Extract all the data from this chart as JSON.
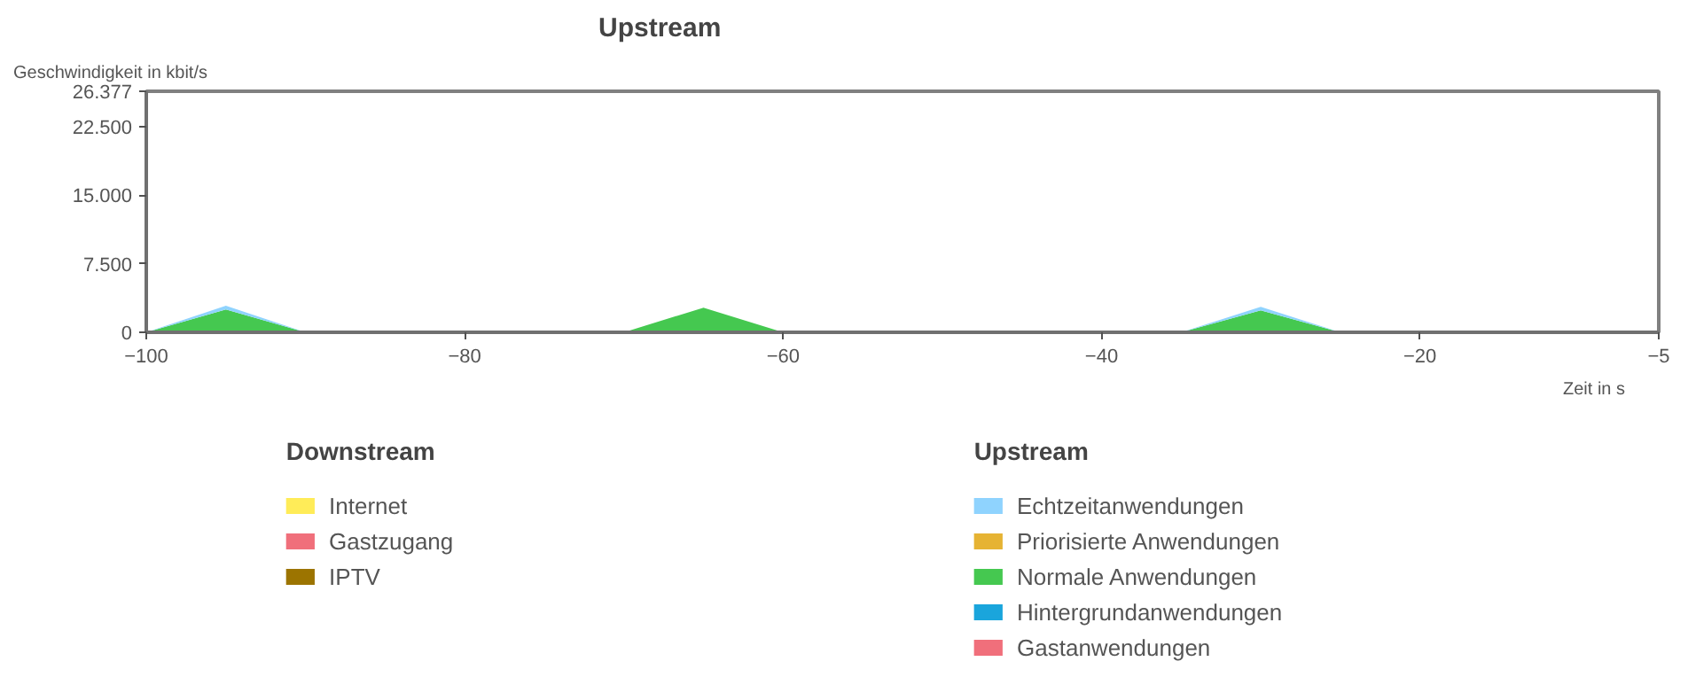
{
  "chart_data": [
    {
      "type": "area",
      "stacked": true,
      "title": "Upstream",
      "xlabel": "Zeit in s",
      "ylabel": "Geschwindigkeit in kbit/s",
      "x": [
        -100,
        -95,
        -90,
        -85,
        -80,
        -75,
        -70,
        -65,
        -60,
        -55,
        -50,
        -45,
        -40,
        -35,
        -30,
        -25,
        -20,
        -15,
        -10,
        -5
      ],
      "series": [
        {
          "name": "Gastanwendungen",
          "color": "#f06f7b",
          "values": [
            null,
            null,
            null,
            null,
            null,
            null,
            null,
            null,
            null,
            null,
            null,
            null,
            null,
            null,
            null,
            null,
            null,
            null,
            null,
            null
          ]
        },
        {
          "name": "Hintergrundanwendungen",
          "color": "#1aa5dc",
          "values": [
            null,
            null,
            null,
            null,
            null,
            null,
            null,
            null,
            null,
            null,
            null,
            null,
            null,
            null,
            null,
            null,
            null,
            null,
            null,
            null
          ]
        },
        {
          "name": "Normale Anwendungen",
          "color": "#45c850",
          "values": [
            0,
            2500,
            0,
            0,
            0,
            0,
            0,
            2700,
            0,
            0,
            0,
            0,
            0,
            0,
            2400,
            0,
            0,
            0,
            0,
            0
          ]
        },
        {
          "name": "Priorisierte Anwendungen",
          "color": "#e6b333",
          "values": [
            null,
            null,
            null,
            null,
            null,
            null,
            null,
            null,
            null,
            null,
            null,
            null,
            null,
            null,
            null,
            null,
            null,
            null,
            null,
            null
          ]
        },
        {
          "name": "Echtzeitanwendungen",
          "color": "#8fd3fe",
          "values": [
            0,
            400,
            0,
            0,
            0,
            0,
            0,
            0,
            0,
            0,
            0,
            0,
            0,
            0,
            400,
            0,
            0,
            0,
            0,
            0
          ]
        }
      ],
      "xlim": [
        -100,
        -5
      ],
      "xticks": [
        -100,
        -80,
        -60,
        -40,
        -20,
        -5
      ],
      "ylim": [
        0,
        26377
      ],
      "yticks": [
        0,
        {
          "value": 7500,
          "label": "7.500"
        },
        {
          "value": 15000,
          "label": "15.000"
        },
        {
          "value": 22500,
          "label": "22.500"
        },
        {
          "value": 26377,
          "label": "26.377"
        }
      ],
      "grid": false,
      "legend": "bottom",
      "legend_title": "Upstream"
    },
    {
      "type": "other",
      "legend_title": "Downstream",
      "legend": "bottom",
      "series": [
        {
          "name": "IPTV",
          "color": "#9c7400"
        },
        {
          "name": "Gastzugang",
          "color": "#f06f7b"
        },
        {
          "name": "Internet",
          "color": "#ffec58"
        }
      ]
    }
  ]
}
